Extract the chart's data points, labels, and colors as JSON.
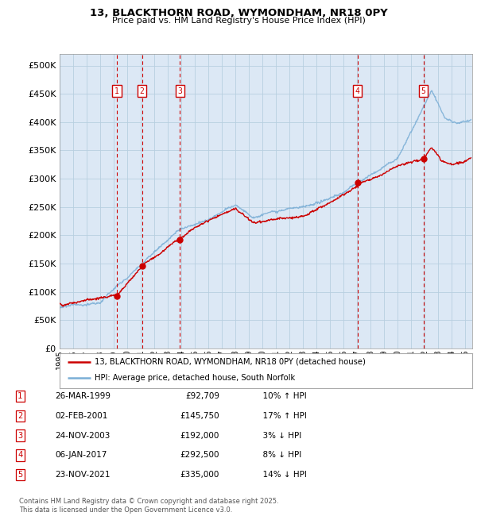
{
  "title": "13, BLACKTHORN ROAD, WYMONDHAM, NR18 0PY",
  "subtitle": "Price paid vs. HM Land Registry's House Price Index (HPI)",
  "ytick_values": [
    0,
    50000,
    100000,
    150000,
    200000,
    250000,
    300000,
    350000,
    400000,
    450000,
    500000
  ],
  "ylim": [
    0,
    520000
  ],
  "xlim_start": 1995.0,
  "xlim_end": 2025.5,
  "transactions": [
    {
      "num": 1,
      "date": "26-MAR-1999",
      "year": 1999.23,
      "price": 92709,
      "pct": "10%",
      "dir": "↑"
    },
    {
      "num": 2,
      "date": "02-FEB-2001",
      "year": 2001.09,
      "price": 145750,
      "pct": "17%",
      "dir": "↑"
    },
    {
      "num": 3,
      "date": "24-NOV-2003",
      "year": 2003.9,
      "price": 192000,
      "pct": "3%",
      "dir": "↓"
    },
    {
      "num": 4,
      "date": "06-JAN-2017",
      "year": 2017.02,
      "price": 292500,
      "pct": "8%",
      "dir": "↓"
    },
    {
      "num": 5,
      "date": "23-NOV-2021",
      "year": 2021.9,
      "price": 335000,
      "pct": "14%",
      "dir": "↓"
    }
  ],
  "legend_line1": "13, BLACKTHORN ROAD, WYMONDHAM, NR18 0PY (detached house)",
  "legend_line2": "HPI: Average price, detached house, South Norfolk",
  "footer": "Contains HM Land Registry data © Crown copyright and database right 2025.\nThis data is licensed under the Open Government Licence v3.0.",
  "bg_color": "#dce8f5",
  "red_line_color": "#cc0000",
  "blue_line_color": "#7aaed6",
  "transaction_box_color": "#cc0000",
  "dashed_line_color": "#cc0000",
  "grid_color": "#b8cfe0",
  "xtick_years": [
    1995,
    1996,
    1997,
    1998,
    1999,
    2000,
    2001,
    2002,
    2003,
    2004,
    2005,
    2006,
    2007,
    2008,
    2009,
    2010,
    2011,
    2012,
    2013,
    2014,
    2015,
    2016,
    2017,
    2018,
    2019,
    2020,
    2021,
    2022,
    2023,
    2024,
    2025
  ]
}
